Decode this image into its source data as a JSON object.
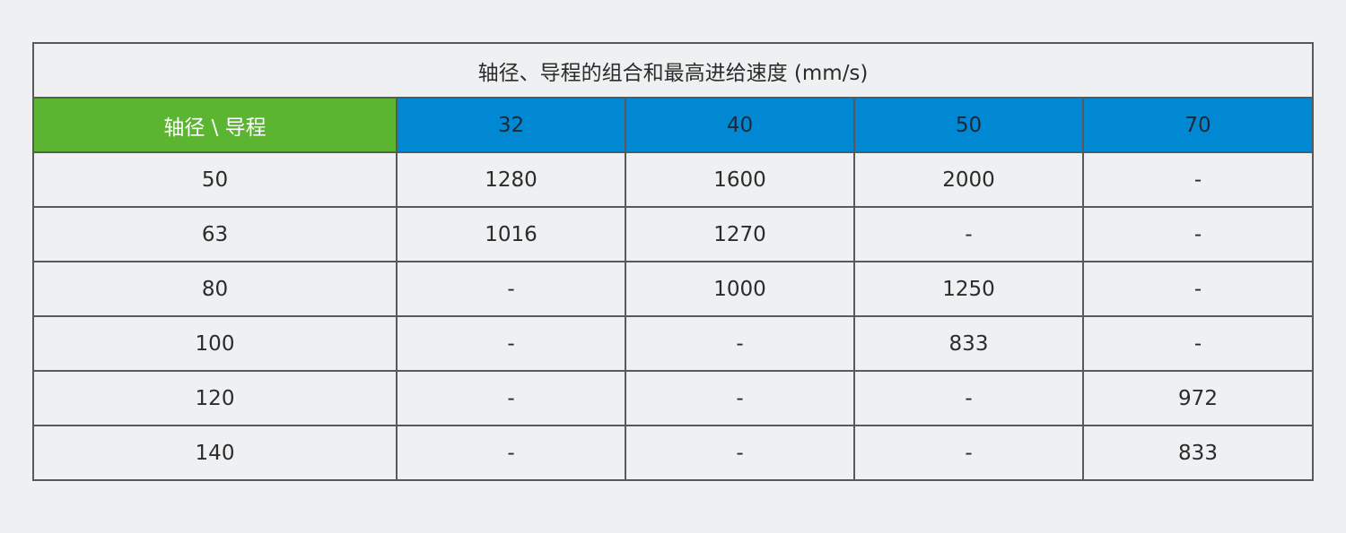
{
  "table": {
    "title": "轴径、导程的组合和最高进给速度 (mm/s)",
    "header": [
      "轴径 \\ 导程",
      "32",
      "40",
      "50",
      "70"
    ],
    "rows": [
      [
        "50",
        "1280",
        "1600",
        "2000",
        "-"
      ],
      [
        "63",
        "1016",
        "1270",
        "-",
        "-"
      ],
      [
        "80",
        "-",
        "1000",
        "1250",
        "-"
      ],
      [
        "100",
        "-",
        "-",
        "833",
        "-"
      ],
      [
        "120",
        "-",
        "-",
        "-",
        "972"
      ],
      [
        "140",
        "-",
        "-",
        "-",
        "833"
      ]
    ]
  }
}
